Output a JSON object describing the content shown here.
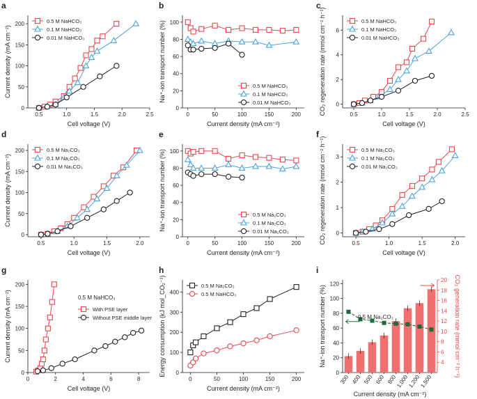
{
  "colors": {
    "red": "#e8474b",
    "blue": "#4aa3e0",
    "black": "#231f20",
    "green": "#1d6b3b",
    "bar": "#f07070"
  },
  "chart_data": [
    {
      "id": "a",
      "letter": "a",
      "type": "line",
      "xlabel": "Cell voltage (V)",
      "ylabel": "Current density (mA cm⁻²)",
      "xlim": [
        0.3,
        2.5
      ],
      "ylim": [
        0,
        220
      ],
      "xticks": [
        0.5,
        1.0,
        1.5,
        2.0,
        2.5
      ],
      "xtick_labels": [
        "0.5",
        "1.0",
        "1.5",
        "2.0",
        "2.5"
      ],
      "yticks": [
        0,
        50,
        100,
        150,
        200
      ],
      "ytick_labels": [
        "0",
        "50",
        "100",
        "150",
        "200"
      ],
      "legend_pos": "top-left",
      "series": [
        {
          "name": "0.5 M NaHCO₃",
          "marker": "square",
          "color": "red",
          "x": [
            0.5,
            0.6,
            0.7,
            0.8,
            0.95,
            1.05,
            1.15,
            1.25,
            1.35,
            1.45,
            1.55,
            1.65,
            1.9
          ],
          "y": [
            0,
            3,
            8,
            15,
            28,
            50,
            70,
            95,
            125,
            140,
            160,
            170,
            200
          ]
        },
        {
          "name": "0.1 M NaHCO₃",
          "marker": "triangle",
          "color": "blue",
          "x": [
            0.5,
            0.65,
            0.8,
            0.95,
            1.05,
            1.2,
            1.35,
            1.45,
            1.55,
            1.85,
            2.25
          ],
          "y": [
            0,
            4,
            8,
            25,
            40,
            60,
            100,
            120,
            135,
            160,
            200
          ]
        },
        {
          "name": "0.01 M NaHCO₃",
          "marker": "circle",
          "color": "black",
          "x": [
            0.5,
            0.65,
            0.8,
            1.0,
            1.3,
            1.6,
            1.9
          ],
          "y": [
            0,
            3,
            8,
            25,
            50,
            75,
            100
          ]
        }
      ]
    },
    {
      "id": "b",
      "letter": "b",
      "type": "line",
      "xlabel": "Current density (mA cm⁻²)",
      "ylabel": "Na⁺-ion transport number (%)",
      "xlim": [
        -10,
        215
      ],
      "ylim": [
        0,
        108
      ],
      "xticks": [
        0,
        50,
        100,
        150,
        200
      ],
      "xtick_labels": [
        "0",
        "50",
        "100",
        "150",
        "200"
      ],
      "yticks": [
        0,
        20,
        40,
        60,
        80,
        100
      ],
      "ytick_labels": [
        "0",
        "20",
        "40",
        "60",
        "80",
        "100"
      ],
      "legend_pos": "bottom-right",
      "series": [
        {
          "name": "0.5 M NaHCO₃",
          "marker": "square",
          "color": "red",
          "x": [
            0,
            5,
            10,
            25,
            50,
            75,
            100,
            125,
            150,
            175,
            200
          ],
          "y": [
            100,
            93,
            89,
            92,
            96,
            91,
            93,
            91,
            91,
            90,
            91
          ]
        },
        {
          "name": "0.1 M NaHCO₃",
          "marker": "triangle",
          "color": "blue",
          "x": [
            0,
            5,
            10,
            25,
            50,
            75,
            100,
            125,
            150,
            200
          ],
          "y": [
            80,
            77,
            75,
            78,
            75,
            78,
            77,
            77,
            73,
            77
          ]
        },
        {
          "name": "0.01 M NaHCO₃",
          "marker": "circle",
          "color": "black",
          "x": [
            0,
            5,
            10,
            25,
            50,
            75,
            100
          ],
          "y": [
            73,
            68,
            68,
            69,
            70,
            75,
            62
          ]
        }
      ]
    },
    {
      "id": "c",
      "letter": "c",
      "type": "line",
      "xlabel": "Cell voltage (V)",
      "ylabel": "CO₂ regeneration rate (mmol cm⁻² h⁻¹)",
      "xlim": [
        0.3,
        2.5
      ],
      "ylim": [
        -0.3,
        7.2
      ],
      "xticks": [
        0.5,
        1.0,
        1.5,
        2.0,
        2.5
      ],
      "xtick_labels": [
        "0.5",
        "1.0",
        "1.5",
        "2.0",
        "2.5"
      ],
      "yticks": [
        0,
        2,
        4,
        6
      ],
      "ytick_labels": [
        "0",
        "2",
        "4",
        "6"
      ],
      "legend_pos": "top-left",
      "series": [
        {
          "name": "0.5 M NaHCO₃",
          "marker": "square",
          "color": "red",
          "x": [
            0.5,
            0.6,
            0.7,
            0.85,
            1.0,
            1.15,
            1.3,
            1.45,
            1.55,
            1.75,
            1.9
          ],
          "y": [
            0,
            0.1,
            0.3,
            0.6,
            1.0,
            1.9,
            3.0,
            3.4,
            4.5,
            5.3,
            6.7
          ]
        },
        {
          "name": "0.1 M NaHCO₃",
          "marker": "triangle",
          "color": "blue",
          "x": [
            0.5,
            0.65,
            0.8,
            0.95,
            1.15,
            1.3,
            1.45,
            1.6,
            1.85,
            2.25
          ],
          "y": [
            0,
            0.1,
            0.3,
            0.6,
            1.2,
            2.0,
            2.7,
            3.7,
            4.3,
            5.8
          ]
        },
        {
          "name": "0.01 M NaHCO₃",
          "marker": "circle",
          "color": "black",
          "x": [
            0.5,
            0.65,
            0.8,
            1.0,
            1.3,
            1.6,
            1.9
          ],
          "y": [
            0,
            0.1,
            0.3,
            0.6,
            1.1,
            1.9,
            2.3
          ]
        }
      ]
    },
    {
      "id": "d",
      "letter": "d",
      "type": "line",
      "xlabel": "Cell voltage (V)",
      "ylabel": "Current density (mA cm⁻²)",
      "xlim": [
        0.3,
        2.15
      ],
      "ylim": [
        -5,
        215
      ],
      "xticks": [
        0.5,
        1.0,
        1.5,
        2.0
      ],
      "xtick_labels": [
        "0.5",
        "1.0",
        "1.5",
        "2.0"
      ],
      "yticks": [
        0,
        50,
        100,
        150,
        200
      ],
      "ytick_labels": [
        "0",
        "50",
        "100",
        "150",
        "200"
      ],
      "legend_pos": "top-left",
      "series": [
        {
          "name": "0.5 M Na₂CO₃",
          "marker": "square",
          "color": "red",
          "x": [
            0.5,
            0.6,
            0.7,
            0.8,
            0.9,
            1.0,
            1.15,
            1.3,
            1.45,
            1.6,
            1.75,
            1.95
          ],
          "y": [
            0,
            2,
            8,
            15,
            25,
            40,
            65,
            90,
            115,
            140,
            160,
            200
          ]
        },
        {
          "name": "0.1 M Na₂CO₃",
          "marker": "triangle",
          "color": "blue",
          "x": [
            0.5,
            0.6,
            0.75,
            0.9,
            1.05,
            1.2,
            1.35,
            1.5,
            1.65,
            1.8,
            2.0
          ],
          "y": [
            0,
            2,
            8,
            20,
            40,
            60,
            85,
            110,
            140,
            165,
            200
          ]
        },
        {
          "name": "0.01 M Na₂CO₃",
          "marker": "circle",
          "color": "black",
          "x": [
            0.5,
            0.6,
            0.75,
            0.95,
            1.2,
            1.45,
            1.65,
            1.85
          ],
          "y": [
            0,
            2,
            8,
            20,
            40,
            60,
            80,
            100
          ]
        }
      ]
    },
    {
      "id": "e",
      "letter": "e",
      "type": "line",
      "xlabel": "Current density (mA cm⁻²)",
      "ylabel": "Na⁺-ion transport number (%)",
      "xlim": [
        -10,
        215
      ],
      "ylim": [
        0,
        108
      ],
      "xticks": [
        0,
        50,
        100,
        150,
        200
      ],
      "xtick_labels": [
        "0",
        "50",
        "100",
        "150",
        "200"
      ],
      "yticks": [
        0,
        20,
        40,
        60,
        80,
        100
      ],
      "ytick_labels": [
        "0",
        "20",
        "40",
        "60",
        "80",
        "100"
      ],
      "legend_pos": "bottom-right",
      "series": [
        {
          "name": "0.5 M Na₂CO₃",
          "marker": "square",
          "color": "red",
          "x": [
            0,
            5,
            10,
            25,
            50,
            75,
            100,
            125,
            150,
            175,
            200
          ],
          "y": [
            100,
            97,
            99,
            100,
            100,
            91,
            95,
            93,
            92,
            90,
            89
          ]
        },
        {
          "name": "0.1 M Na₂CO₃",
          "marker": "triangle",
          "color": "blue",
          "x": [
            0,
            5,
            10,
            25,
            50,
            75,
            100,
            125,
            150,
            175,
            200
          ],
          "y": [
            90,
            84,
            80,
            80,
            80,
            84,
            80,
            82,
            82,
            79,
            82
          ]
        },
        {
          "name": "0.01 M Na₂CO₃",
          "marker": "circle",
          "color": "black",
          "x": [
            0,
            5,
            10,
            25,
            50,
            75,
            100
          ],
          "y": [
            75,
            73,
            71,
            73,
            73,
            70,
            69
          ]
        }
      ]
    },
    {
      "id": "f",
      "letter": "f",
      "type": "line",
      "xlabel": "Cell voltage (V)",
      "ylabel": "CO₂ regeneration rate (mmol cm⁻² h⁻¹)",
      "xlim": [
        0.3,
        2.15
      ],
      "ylim": [
        -0.15,
        3.5
      ],
      "xticks": [
        0.5,
        1.0,
        1.5,
        2.0
      ],
      "xtick_labels": [
        "0.5",
        "1.0",
        "1.5",
        "2.0"
      ],
      "yticks": [
        0,
        1,
        2,
        3
      ],
      "ytick_labels": [
        "0",
        "1",
        "2",
        "3"
      ],
      "legend_pos": "top-left",
      "series": [
        {
          "name": "0.5 M Na₂CO₃",
          "marker": "square",
          "color": "red",
          "x": [
            0.5,
            0.6,
            0.7,
            0.8,
            0.9,
            1.05,
            1.2,
            1.35,
            1.5,
            1.65,
            1.75,
            1.95
          ],
          "y": [
            0,
            0.05,
            0.15,
            0.3,
            0.5,
            0.95,
            1.5,
            1.85,
            2.15,
            2.5,
            2.8,
            3.3
          ]
        },
        {
          "name": "0.1 M Na₂CO₃",
          "marker": "triangle",
          "color": "blue",
          "x": [
            0.5,
            0.6,
            0.75,
            0.9,
            1.05,
            1.2,
            1.35,
            1.5,
            1.65,
            1.8,
            2.0
          ],
          "y": [
            0,
            0.05,
            0.15,
            0.4,
            0.75,
            1.05,
            1.45,
            1.8,
            2.1,
            2.45,
            3.05
          ]
        },
        {
          "name": "0.01 M Na₂CO₃",
          "marker": "circle",
          "color": "black",
          "x": [
            0.5,
            0.65,
            0.85,
            1.05,
            1.3,
            1.6,
            1.8
          ],
          "y": [
            0,
            0.05,
            0.15,
            0.35,
            0.7,
            0.95,
            1.25
          ]
        }
      ]
    },
    {
      "id": "g",
      "letter": "g",
      "type": "line",
      "xlabel": "Cell voltage (V)",
      "ylabel": "Current density (mA cm⁻²)",
      "xlim": [
        0,
        8.8
      ],
      "ylim": [
        0,
        210
      ],
      "xticks": [
        0,
        2,
        4,
        6,
        8
      ],
      "xtick_labels": [
        "0",
        "2",
        "4",
        "6",
        "8"
      ],
      "yticks": [
        0,
        50,
        100,
        150,
        200
      ],
      "ytick_labels": [
        "0",
        "50",
        "100",
        "150",
        "200"
      ],
      "legend_pos": "center-right",
      "annotation": "0.5 M NaHCO₃",
      "series": [
        {
          "name": "With PSE layer",
          "marker": "square",
          "color": "red",
          "x": [
            0.6,
            0.75,
            0.9,
            1.0,
            1.1,
            1.2,
            1.3,
            1.45,
            1.6,
            1.75,
            1.9
          ],
          "y": [
            2,
            5,
            10,
            20,
            30,
            50,
            75,
            100,
            125,
            160,
            200
          ]
        },
        {
          "name": "Without PSE middle layer",
          "marker": "circle",
          "color": "black",
          "x": [
            0.7,
            1.1,
            1.7,
            2.5,
            3.4,
            4.8,
            5.6,
            6.3,
            7.0,
            7.6,
            8.2
          ],
          "y": [
            3,
            5,
            10,
            20,
            30,
            50,
            60,
            70,
            80,
            90,
            95
          ]
        }
      ]
    },
    {
      "id": "h",
      "letter": "h",
      "type": "line",
      "xlabel": "Current density (mA cm⁻²)",
      "ylabel": "Energy consumption (kJ mol_CO₂⁻¹)",
      "xlim": [
        -15,
        215
      ],
      "ylim": [
        0,
        460
      ],
      "xticks": [
        0,
        50,
        100,
        150,
        200
      ],
      "xtick_labels": [
        "0",
        "50",
        "100",
        "150",
        "200"
      ],
      "yticks": [
        0,
        100,
        200,
        300,
        400
      ],
      "ytick_labels": [
        "0",
        "100",
        "200",
        "300",
        "400"
      ],
      "legend_pos": "top-left",
      "series": [
        {
          "name": "0.5 M Na₂CO₃",
          "marker": "square",
          "color": "black",
          "x": [
            0,
            5,
            10,
            25,
            50,
            75,
            100,
            125,
            150,
            200
          ],
          "y": [
            100,
            135,
            150,
            180,
            220,
            250,
            290,
            320,
            365,
            425
          ]
        },
        {
          "name": "0.5 M NaHCO₃",
          "marker": "circle",
          "color": "red",
          "x": [
            0,
            5,
            10,
            25,
            50,
            75,
            100,
            125,
            150,
            200
          ],
          "y": [
            35,
            50,
            70,
            95,
            110,
            130,
            145,
            160,
            180,
            210
          ]
        }
      ]
    },
    {
      "id": "i",
      "letter": "i",
      "type": "bar",
      "xlabel": "Current density (mA cm⁻²)",
      "ylabel": "Na⁺-ion transport number (%)",
      "ylabel_right": "CO₂ generation rate (mmol cm⁻² h⁻¹)",
      "categories": [
        "300",
        "400",
        "500",
        "600",
        "800",
        "1,000",
        "1,200",
        "1,500"
      ],
      "ylim": [
        0,
        125
      ],
      "yticks": [
        0,
        20,
        40,
        60,
        80,
        100,
        120
      ],
      "ytick_labels": [
        "0",
        "20",
        "40",
        "60",
        "80",
        "100",
        "120"
      ],
      "ylim_right": [
        2,
        20
      ],
      "yticks_right": [
        4,
        6,
        8,
        10,
        12,
        14,
        16,
        18,
        20
      ],
      "ytick_labels_right": [
        "4",
        "6",
        "8",
        "10",
        "12",
        "14",
        "16",
        "18",
        "20"
      ],
      "annotation": "0.5 M Na₂CO₃",
      "transport_number": [
        82,
        72,
        70,
        67,
        66,
        65,
        62,
        58
      ],
      "generation_rate": [
        5.2,
        6.2,
        7.9,
        9.2,
        12.0,
        14.5,
        15.5,
        18.2
      ]
    }
  ]
}
